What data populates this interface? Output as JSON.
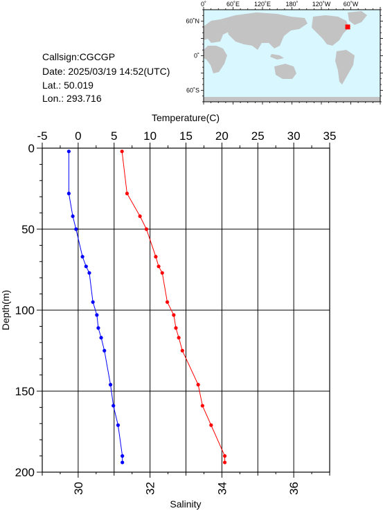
{
  "station": {
    "callsign": "Callsign:CGCGP",
    "date": "Date:  2025/03/19 14:52(UTC)",
    "lat": "Lat.:  50.019",
    "lon": "Lon.:  293.716"
  },
  "map": {
    "top_labels": [
      "0˚",
      "60˚E",
      "120˚E",
      "180˚",
      "120˚W",
      "60˚W"
    ],
    "left_labels": [
      "60˚N",
      "0˚",
      "60˚S"
    ],
    "ocean_color": "#d8f7ff",
    "land_color": "#c3c3c3",
    "marker_color": "#ff0000",
    "marker": {
      "lat": 50.019,
      "lon": 293.716
    }
  },
  "chart_data": {
    "type": "line",
    "y_axis": {
      "label": "Depth(m)",
      "ticks": [
        "0",
        "50",
        "100",
        "150",
        "200"
      ],
      "range": [
        0,
        200
      ],
      "inverted": true
    },
    "x_top": {
      "label": "Temperature(C)",
      "ticks": [
        "-5",
        "0",
        "5",
        "10",
        "15",
        "20",
        "25",
        "30",
        "35"
      ],
      "range": [
        -5,
        35
      ]
    },
    "x_bottom": {
      "label": "Salinity",
      "ticks": [
        "30",
        "32",
        "34",
        "36"
      ],
      "range": [
        29,
        37
      ]
    },
    "grid": true,
    "series": [
      {
        "axis": "temperature",
        "color": "#ff0000",
        "points": [
          [
            6.1,
            2
          ],
          [
            6.8,
            28
          ],
          [
            8.6,
            42
          ],
          [
            9.5,
            50
          ],
          [
            10.8,
            67
          ],
          [
            11.2,
            73
          ],
          [
            11.7,
            77
          ],
          [
            12.4,
            95
          ],
          [
            13.3,
            103
          ],
          [
            13.6,
            111
          ],
          [
            14.0,
            117
          ],
          [
            14.5,
            125
          ],
          [
            16.7,
            146
          ],
          [
            17.3,
            159
          ],
          [
            18.5,
            171
          ],
          [
            20.4,
            190
          ],
          [
            20.4,
            194
          ]
        ]
      },
      {
        "axis": "salinity",
        "color": "#0000ff",
        "points": [
          [
            29.74,
            2
          ],
          [
            29.74,
            28
          ],
          [
            29.85,
            42
          ],
          [
            29.94,
            50
          ],
          [
            30.12,
            67
          ],
          [
            30.22,
            73
          ],
          [
            30.31,
            77
          ],
          [
            30.41,
            95
          ],
          [
            30.52,
            103
          ],
          [
            30.56,
            111
          ],
          [
            30.64,
            117
          ],
          [
            30.73,
            125
          ],
          [
            30.9,
            146
          ],
          [
            30.98,
            159
          ],
          [
            31.11,
            171
          ],
          [
            31.23,
            190
          ],
          [
            31.23,
            194
          ]
        ]
      }
    ]
  }
}
